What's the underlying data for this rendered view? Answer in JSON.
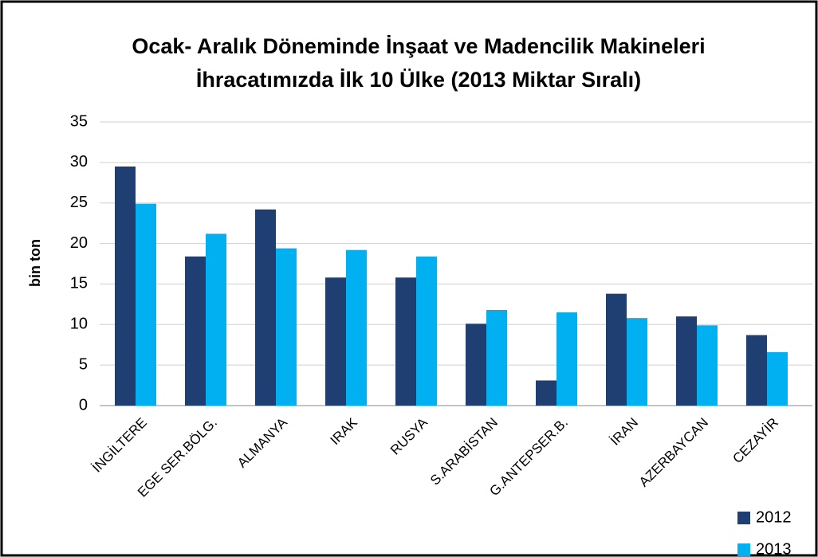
{
  "chart_data": {
    "type": "bar",
    "title": "Ocak- Aralık Döneminde İnşaat ve Madencilik Makineleri İhracatımızda İlk 10 Ülke  (2013 Miktar Sıralı)",
    "y_label": "bin ton",
    "categories": [
      "İNGİLTERE",
      "EGE SER.BÖLG.",
      "ALMANYA",
      "IRAK",
      "RUSYA",
      "S.ARABİSTAN",
      "G.ANTEPSER.B.",
      "İRAN",
      "AZERBAYCAN",
      "CEZAYİR"
    ],
    "series": [
      {
        "name": "2012",
        "color": "#1f3f73",
        "values": [
          29.5,
          18.4,
          24.2,
          15.8,
          15.8,
          10.1,
          3.1,
          13.8,
          11.0,
          8.7
        ]
      },
      {
        "name": "2013",
        "color": "#00b0f0",
        "values": [
          24.9,
          21.2,
          19.4,
          19.2,
          18.4,
          11.8,
          11.5,
          10.8,
          9.9,
          6.6
        ]
      }
    ],
    "ylim": [
      0,
      35
    ],
    "yticks": [
      0,
      5,
      10,
      15,
      20,
      25,
      30,
      35
    ],
    "grid": true,
    "legend": "bottom-right"
  }
}
